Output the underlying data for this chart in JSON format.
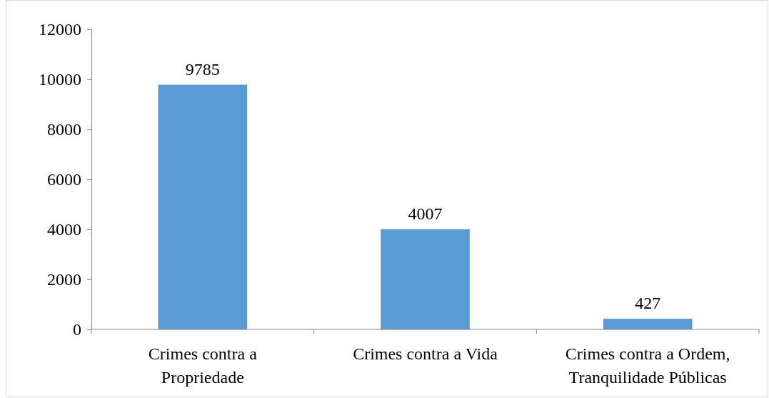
{
  "chart_data": {
    "type": "bar",
    "categories": [
      "Crimes contra a Propriedade",
      "Crimes contra a Vida",
      "Crimes contra a Ordem, Tranquilidade Públicas"
    ],
    "values": [
      9785,
      4007,
      427
    ],
    "color": "#5b9bd5",
    "data_labels": true,
    "ylim": [
      0,
      12000
    ],
    "yticks": [
      0,
      2000,
      4000,
      6000,
      8000,
      10000,
      12000
    ],
    "grid": false
  }
}
